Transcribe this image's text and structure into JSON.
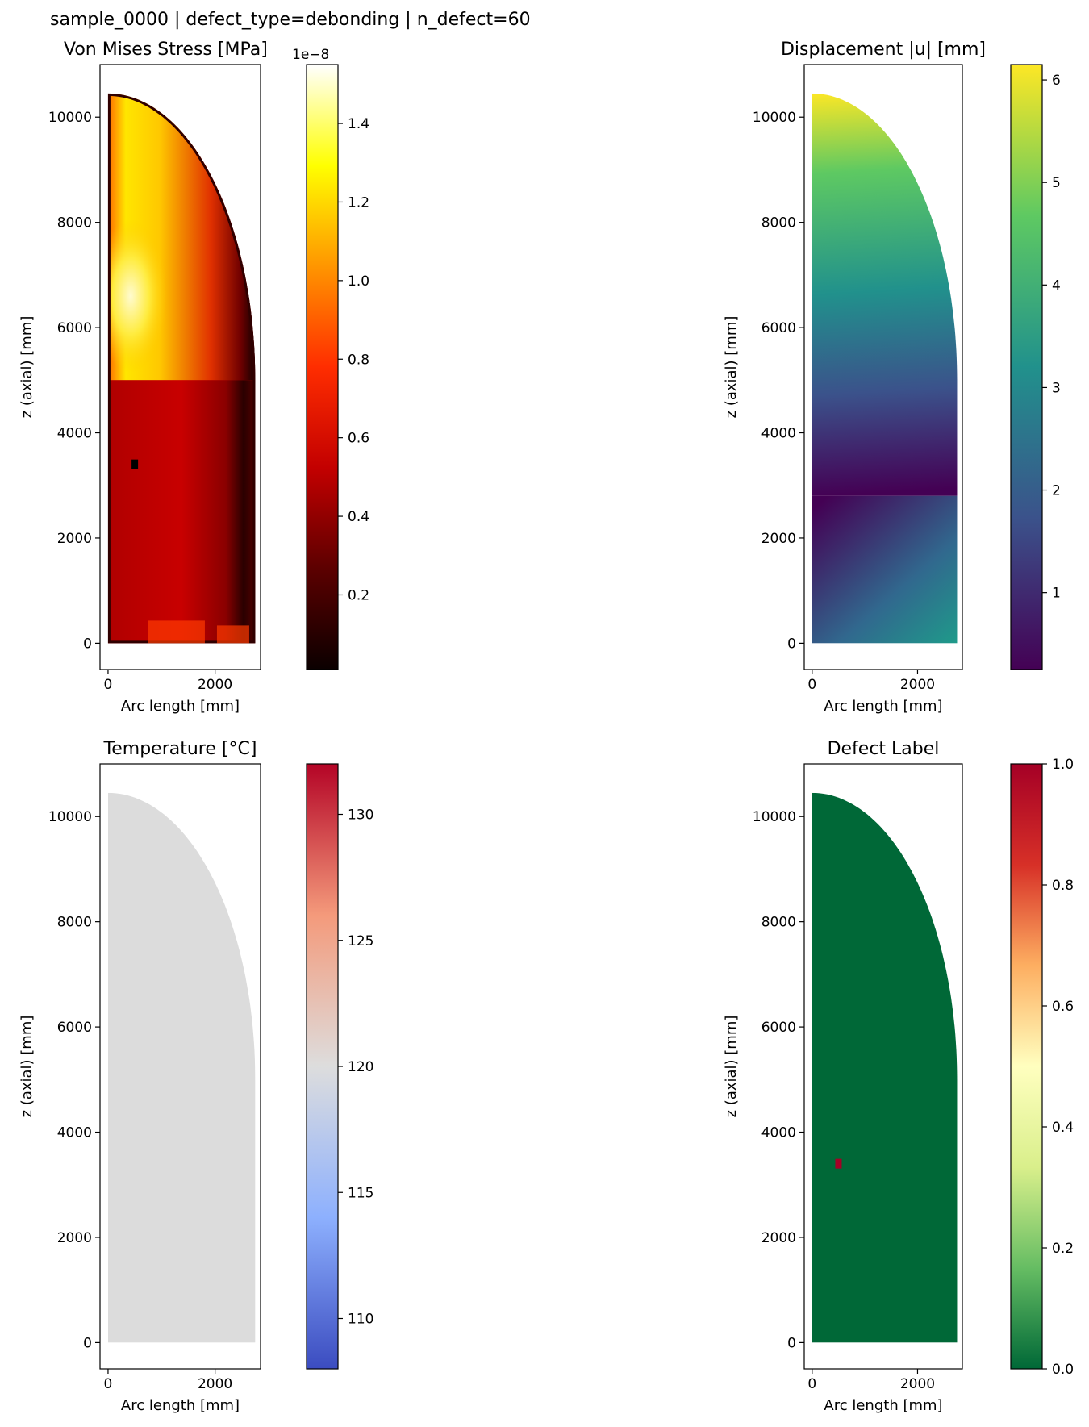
{
  "figure_title": "sample_0000 | defect_type=debonding | n_defect=60",
  "chart_data": [
    {
      "type": "heatmap",
      "title": "Von Mises Stress [MPa]",
      "xlabel": "Arc length [mm]",
      "ylabel": "z (axial) [mm]",
      "xlim": [
        -150,
        2850
      ],
      "ylim": [
        -500,
        11000
      ],
      "xticks": [
        0,
        2000
      ],
      "yticks": [
        0,
        2000,
        4000,
        6000,
        8000,
        10000
      ],
      "domain_shape": {
        "width": 2750,
        "cylinder_top": 5000,
        "apex": 10450
      },
      "defect_marker": {
        "x": 500,
        "y": 3400
      },
      "colorbar": {
        "colormap": "hot",
        "range": [
          0.01,
          1.55
        ],
        "ticks": [
          0.2,
          0.4,
          0.6,
          0.8,
          1.0,
          1.2,
          1.4
        ],
        "tick_labels": [
          "0.2",
          "0.4",
          "0.6",
          "0.8",
          "1.0",
          "1.2",
          "1.4"
        ],
        "offset_text": "1e−8",
        "colors": [
          "#0b0000",
          "#5c0000",
          "#c30000",
          "#ff2d00",
          "#ff9600",
          "#ffff00",
          "#ffffff"
        ]
      }
    },
    {
      "type": "heatmap",
      "title": "Displacement |u| [mm]",
      "xlabel": "Arc length [mm]",
      "ylabel": "z (axial) [mm]",
      "xlim": [
        -150,
        2850
      ],
      "ylim": [
        -500,
        11000
      ],
      "xticks": [
        0,
        2000
      ],
      "yticks": [
        0,
        2000,
        4000,
        6000,
        8000,
        10000
      ],
      "domain_shape": {
        "width": 2750,
        "cylinder_top": 5000,
        "apex": 10450
      },
      "colorbar": {
        "colormap": "viridis",
        "range": [
          0.25,
          6.15
        ],
        "ticks": [
          1,
          2,
          3,
          4,
          5,
          6
        ],
        "tick_labels": [
          "1",
          "2",
          "3",
          "4",
          "5",
          "6"
        ],
        "colors": [
          "#440154",
          "#3b528b",
          "#21918c",
          "#5ec962",
          "#fde725"
        ]
      }
    },
    {
      "type": "heatmap",
      "title": "Temperature [°C]",
      "xlabel": "Arc length [mm]",
      "ylabel": "z (axial) [mm]",
      "xlim": [
        -150,
        2850
      ],
      "ylim": [
        -500,
        11000
      ],
      "xticks": [
        0,
        2000
      ],
      "yticks": [
        0,
        2000,
        4000,
        6000,
        8000,
        10000
      ],
      "domain_shape": {
        "width": 2750,
        "cylinder_top": 5000,
        "apex": 10450
      },
      "field_color": "#dcdcdc",
      "colorbar": {
        "colormap": "coolwarm",
        "range": [
          108,
          132
        ],
        "ticks": [
          110,
          115,
          120,
          125,
          130
        ],
        "tick_labels": [
          "110",
          "115",
          "120",
          "125",
          "130"
        ],
        "colors": [
          "#3b4cc0",
          "#8db0fe",
          "#dddddd",
          "#f49a7b",
          "#b40426"
        ]
      }
    },
    {
      "type": "heatmap",
      "title": "Defect Label",
      "xlabel": "Arc length [mm]",
      "ylabel": "z (axial) [mm]",
      "xlim": [
        -150,
        2850
      ],
      "ylim": [
        -500,
        11000
      ],
      "xticks": [
        0,
        2000
      ],
      "yticks": [
        0,
        2000,
        4000,
        6000,
        8000,
        10000
      ],
      "domain_shape": {
        "width": 2750,
        "cylinder_top": 5000,
        "apex": 10450
      },
      "field_color": "#006837",
      "defect_marker": {
        "x": 500,
        "y": 3400,
        "color": "#a50026"
      },
      "colorbar": {
        "colormap": "RdYlGn_r",
        "range": [
          0,
          1
        ],
        "ticks": [
          0.0,
          0.2,
          0.4,
          0.6,
          0.8,
          1.0
        ],
        "tick_labels": [
          "0.0",
          "0.2",
          "0.4",
          "0.6",
          "0.8",
          "1.0"
        ],
        "colors": [
          "#006837",
          "#66bd63",
          "#d9ef8b",
          "#ffffbf",
          "#fdae61",
          "#d73027",
          "#a50026"
        ]
      }
    }
  ]
}
